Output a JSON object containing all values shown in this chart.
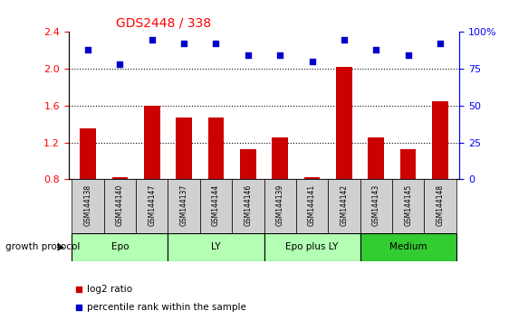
{
  "title": "GDS2448 / 338",
  "samples": [
    "GSM144138",
    "GSM144140",
    "GSM144147",
    "GSM144137",
    "GSM144144",
    "GSM144146",
    "GSM144139",
    "GSM144141",
    "GSM144142",
    "GSM144143",
    "GSM144145",
    "GSM144148"
  ],
  "log2_ratio": [
    1.35,
    0.82,
    1.6,
    1.47,
    1.47,
    1.13,
    1.25,
    0.82,
    2.02,
    1.25,
    1.13,
    1.65
  ],
  "percentile_rank": [
    88,
    78,
    95,
    92,
    92,
    84,
    84,
    80,
    95,
    88,
    84,
    92
  ],
  "groups": [
    {
      "label": "Epo",
      "start": 0,
      "end": 3
    },
    {
      "label": "LY",
      "start": 3,
      "end": 6
    },
    {
      "label": "Epo plus LY",
      "start": 6,
      "end": 9
    },
    {
      "label": "Medium",
      "start": 9,
      "end": 12
    }
  ],
  "group_colors": [
    "#b3ffb3",
    "#b3ffb3",
    "#b3ffb3",
    "#33cc33"
  ],
  "ylim_left": [
    0.8,
    2.4
  ],
  "ylim_right": [
    0,
    100
  ],
  "yticks_left": [
    0.8,
    1.2,
    1.6,
    2.0,
    2.4
  ],
  "yticks_right": [
    0,
    25,
    50,
    75,
    100
  ],
  "bar_color": "#cc0000",
  "dot_color": "#0000cc",
  "bar_width": 0.5,
  "title_fontsize": 10,
  "group_label": "growth protocol",
  "legend_log2": "log2 ratio",
  "legend_pct": "percentile rank within the sample",
  "sample_box_color": "#d0d0d0"
}
